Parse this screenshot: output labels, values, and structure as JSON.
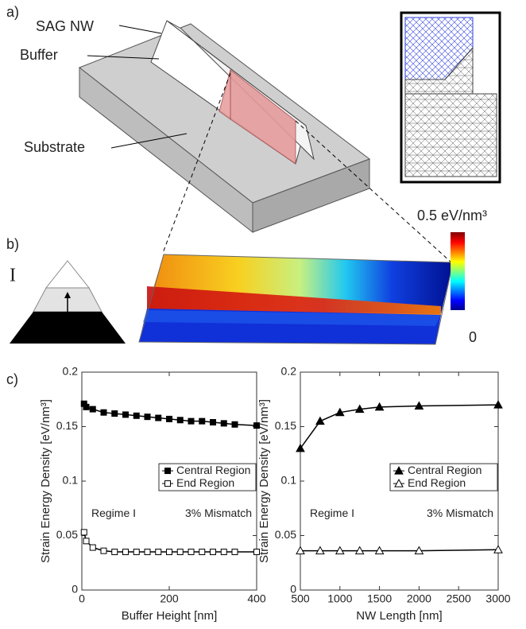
{
  "panel_labels": [
    "a)",
    "b)",
    "c)"
  ],
  "diagram": {
    "labels": [
      "SAG NW",
      "Buffer",
      "Substrate"
    ]
  },
  "colorbar": {
    "max_label": "0.5 eV/nm³",
    "min_label": "0"
  },
  "regime_icon": "I",
  "chart_data": [
    {
      "type": "line",
      "x_label": "Buffer Height [nm]",
      "y_label": "Strain Energy Density [eV/nm³]",
      "x": [
        5,
        10,
        25,
        50,
        75,
        100,
        125,
        150,
        175,
        200,
        225,
        250,
        275,
        300,
        325,
        350,
        400
      ],
      "series": [
        {
          "name": "Central Region",
          "color": "#000000",
          "marker": "square",
          "filled": true,
          "values": [
            0.171,
            0.168,
            0.166,
            0.163,
            0.162,
            0.161,
            0.16,
            0.159,
            0.158,
            0.157,
            0.156,
            0.155,
            0.155,
            0.154,
            0.153,
            0.152,
            0.151
          ]
        },
        {
          "name": "End Region",
          "color": "#000000",
          "marker": "square",
          "filled": false,
          "values": [
            0.053,
            0.045,
            0.039,
            0.036,
            0.035,
            0.035,
            0.035,
            0.035,
            0.035,
            0.035,
            0.035,
            0.035,
            0.035,
            0.035,
            0.035,
            0.035,
            0.035
          ]
        }
      ],
      "xlim": [
        0,
        400
      ],
      "xticks": [
        0,
        200,
        400
      ],
      "ylim": [
        0,
        0.2
      ],
      "yticks": [
        0,
        0.05,
        0.1,
        0.15,
        0.2
      ],
      "annotations": [
        "Regime I",
        "3% Mismatch"
      ],
      "legend": "center right"
    },
    {
      "type": "line",
      "x_label": "NW Length [nm]",
      "y_label": "Strain Energy Density [eV/nm³]",
      "x": [
        500,
        750,
        1000,
        1250,
        1500,
        2000,
        3000
      ],
      "series": [
        {
          "name": "Central Region",
          "color": "#000000",
          "marker": "triangle",
          "filled": true,
          "values": [
            0.13,
            0.155,
            0.163,
            0.166,
            0.168,
            0.169,
            0.17
          ]
        },
        {
          "name": "End Region",
          "color": "#000000",
          "marker": "triangle",
          "filled": false,
          "values": [
            0.036,
            0.036,
            0.036,
            0.036,
            0.036,
            0.036,
            0.037
          ]
        }
      ],
      "xlim": [
        500,
        3000
      ],
      "xticks": [
        500,
        1000,
        1500,
        2000,
        2500,
        3000
      ],
      "ylim": [
        0,
        0.2
      ],
      "yticks": [
        0,
        0.05,
        0.1,
        0.15,
        0.2
      ],
      "annotations": [
        "Regime I",
        "3% Mismatch"
      ],
      "legend": "center right"
    }
  ]
}
